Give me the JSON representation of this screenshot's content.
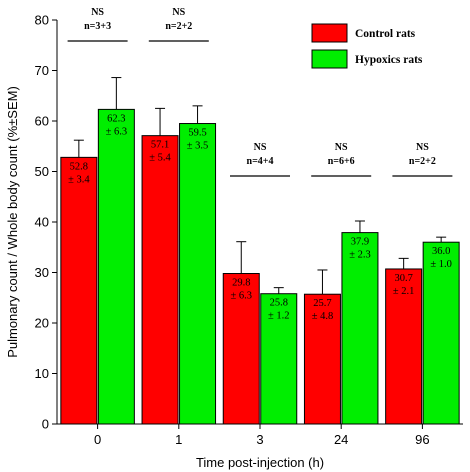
{
  "chart_data": {
    "type": "bar",
    "xlabel": "Time post-injection (h)",
    "ylabel": "Pulmonary count / Whole body count (%±SEM)",
    "ylim": [
      0,
      80
    ],
    "yticks": [
      0,
      10,
      20,
      30,
      40,
      50,
      60,
      70,
      80
    ],
    "categories": [
      "0",
      "1",
      "3",
      "24",
      "96"
    ],
    "grid": false,
    "legend_position": "top-right",
    "series": [
      {
        "name": "Control rats",
        "color": "#ff0000",
        "values": [
          52.8,
          57.1,
          29.8,
          25.7,
          30.7
        ],
        "errors": [
          3.4,
          5.4,
          6.3,
          4.8,
          2.1
        ],
        "value_labels": [
          "52.8",
          "57.1",
          "29.8",
          "25.7",
          "30.7"
        ],
        "error_labels": [
          "± 3.4",
          "± 5.4",
          "± 6.3",
          "± 4.8",
          "± 2.1"
        ]
      },
      {
        "name": "Hypoxics rats",
        "color": "#00ee00",
        "values": [
          62.3,
          59.5,
          25.8,
          37.9,
          36.0
        ],
        "errors": [
          6.3,
          3.5,
          1.2,
          2.3,
          1.0
        ],
        "value_labels": [
          "62.3",
          "59.5",
          "25.8",
          "37.9",
          "36.0"
        ],
        "error_labels": [
          "± 6.3",
          "± 3.5",
          "± 1.2",
          "± 2.3",
          "± 1.0"
        ]
      }
    ],
    "annotations": [
      {
        "category": "0",
        "significance": "NS",
        "n": "n=3+3"
      },
      {
        "category": "1",
        "significance": "NS",
        "n": "n=2+2"
      },
      {
        "category": "3",
        "significance": "NS",
        "n": "n=4+4"
      },
      {
        "category": "24",
        "significance": "NS",
        "n": "n=6+6"
      },
      {
        "category": "96",
        "significance": "NS",
        "n": "n=2+2"
      }
    ]
  }
}
